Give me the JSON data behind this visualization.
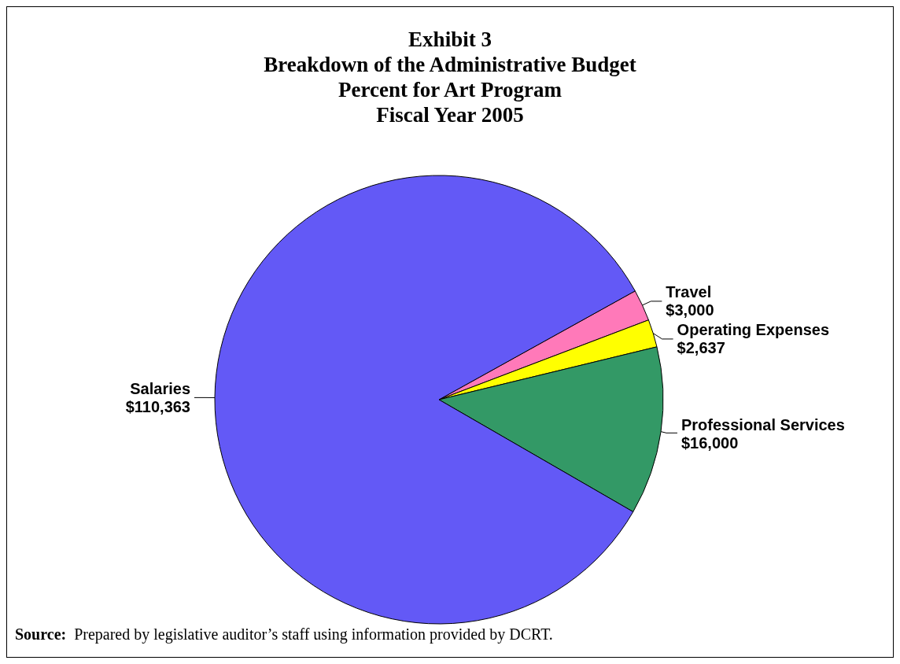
{
  "chart_data": {
    "type": "pie",
    "title": "Exhibit 3\nBreakdown of the Administrative Budget\nPercent for Art Program\nFiscal Year 2005",
    "categories": [
      "Travel",
      "Operating Expenses",
      "Professional Services",
      "Salaries"
    ],
    "values": [
      3000,
      2637,
      16000,
      110363
    ],
    "colors": [
      "#ff79b9",
      "#ffff00",
      "#339966",
      "#6359f6"
    ],
    "value_labels": [
      "$3,000",
      "$2,637",
      "$16,000",
      "$110,363"
    ],
    "annotations": [
      "Source:  Prepared by legislative auditor’s staff using information provided by DCRT."
    ]
  }
}
